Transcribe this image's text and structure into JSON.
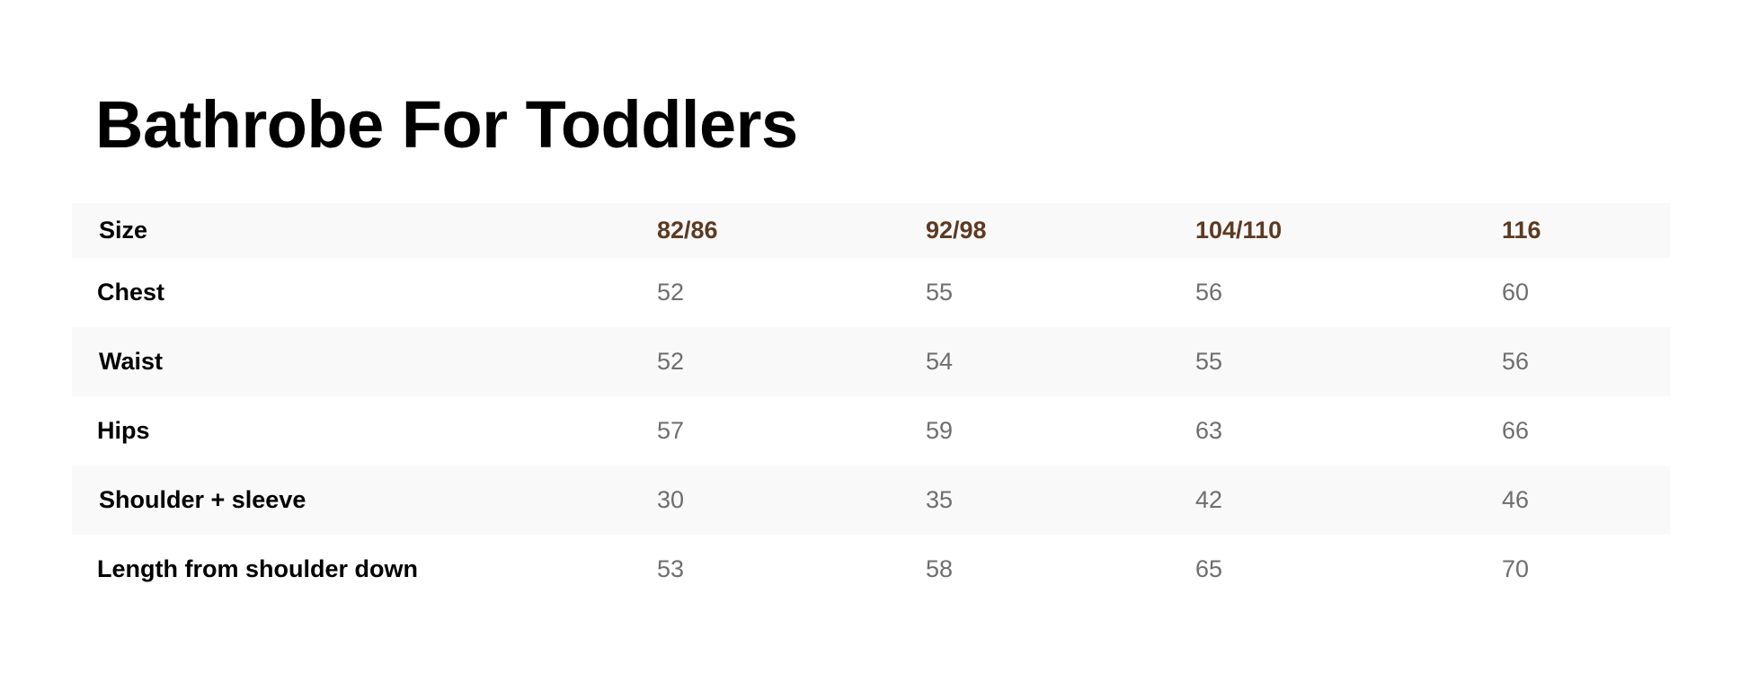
{
  "title": "Bathrobe For Toddlers",
  "colors": {
    "header_accent": "#5c3a21",
    "value_text": "#6e6e6e",
    "stripe": "#f9f9f9"
  },
  "table": {
    "header": {
      "label": "Size",
      "sizes": [
        "82/86",
        "92/98",
        "104/110",
        "116"
      ]
    },
    "rows": [
      {
        "label": "Chest",
        "values": [
          "52",
          "55",
          "56",
          "60"
        ]
      },
      {
        "label": "Waist",
        "values": [
          "52",
          "54",
          "55",
          "56"
        ]
      },
      {
        "label": "Hips",
        "values": [
          "57",
          "59",
          "63",
          "66"
        ]
      },
      {
        "label": "Shoulder + sleeve",
        "values": [
          "30",
          "35",
          "42",
          "46"
        ]
      },
      {
        "label": "Length from shoulder down",
        "values": [
          "53",
          "58",
          "65",
          "70"
        ]
      }
    ]
  }
}
